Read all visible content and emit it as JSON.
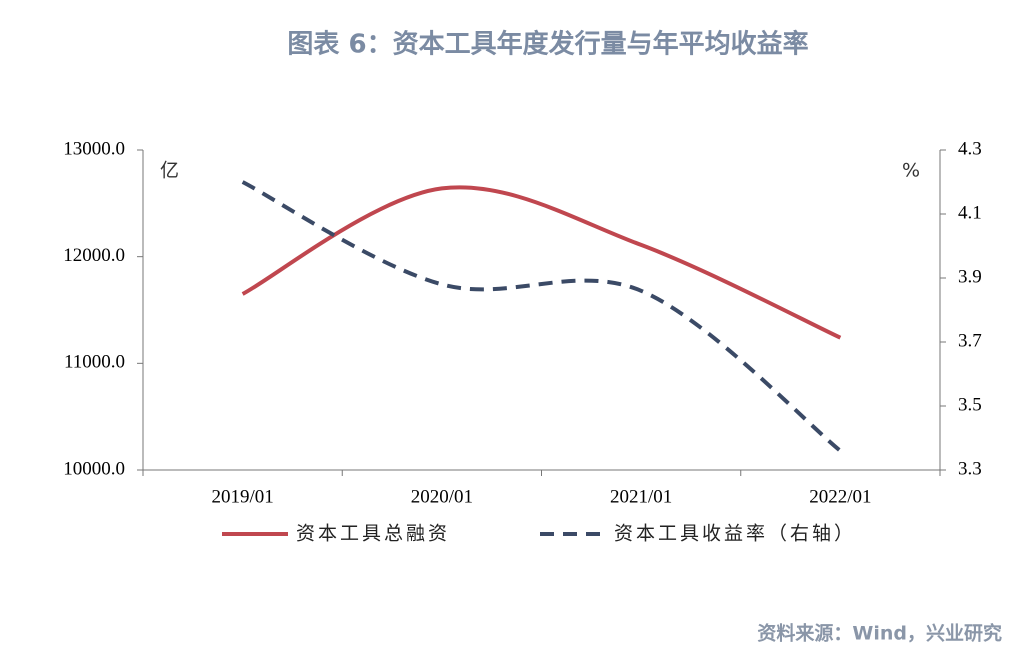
{
  "chart_data": {
    "type": "line",
    "title": "图表 6：资本工具年度发行量与年平均收益率",
    "source": "资料来源：Wind，兴业研究",
    "y_unit": "亿",
    "y2_unit": "%",
    "categories": [
      "2019/01",
      "2020/01",
      "2021/01",
      "2022/01"
    ],
    "series": [
      {
        "name": "资本工具总融资",
        "color": "#c0474f",
        "values": [
          11650,
          12640,
          12110,
          11240
        ]
      },
      {
        "name": "资本工具收益率（右轴）",
        "color": "#3b4a66",
        "axis": "y2",
        "dashed": true,
        "values": [
          4.2,
          3.88,
          3.86,
          3.36
        ]
      }
    ],
    "ylim": [
      10000,
      13000
    ],
    "yticks": [
      {
        "value": 10000,
        "label": "10000.0"
      },
      {
        "value": 11000,
        "label": "11000.0"
      },
      {
        "value": 12000,
        "label": "12000.0"
      },
      {
        "value": 13000,
        "label": "13000.0"
      }
    ],
    "y2lim": [
      3.3,
      4.3
    ],
    "y2ticks": [
      3.3,
      3.5,
      3.7,
      3.9,
      4.1,
      4.3
    ],
    "legend": "bottom",
    "grid": false
  }
}
